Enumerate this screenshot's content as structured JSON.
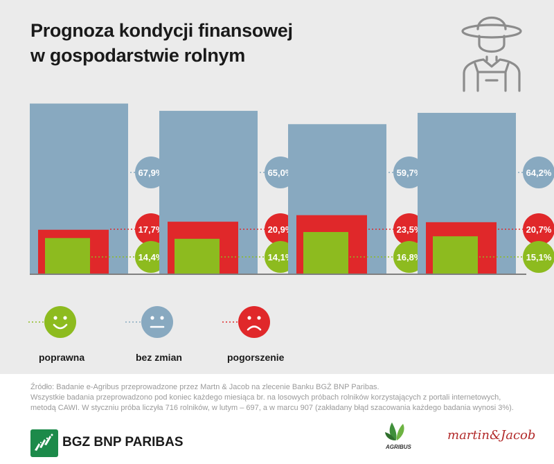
{
  "title_lines": [
    "Prognoza kondycji finansowej",
    "w gospodarstwie rolnym"
  ],
  "colors": {
    "bez_zmian": "#88a9c0",
    "pogorszenie": "#e0282a",
    "poprawna": "#8dbb1f",
    "background": "#ebebeb"
  },
  "chart_data": {
    "type": "bar",
    "categories": [
      "",
      "",
      "",
      ""
    ],
    "series": [
      {
        "name": "bez zmian",
        "values": [
          67.9,
          65.0,
          59.7,
          64.2
        ],
        "labels": [
          "67,9%",
          "65,0%",
          "59,7%",
          "64,2%"
        ]
      },
      {
        "name": "pogorszenie",
        "values": [
          17.7,
          20.9,
          23.5,
          20.7
        ],
        "labels": [
          "17,7%",
          "20,9%",
          "23,5%",
          "20,7%"
        ]
      },
      {
        "name": "poprawna",
        "values": [
          14.4,
          14.1,
          16.8,
          15.1
        ],
        "labels": [
          "14,4%",
          "14,1%",
          "16,8%",
          "15,1%"
        ]
      }
    ],
    "ylim": [
      0,
      70
    ]
  },
  "legend": [
    {
      "key": "poprawna",
      "label": "poprawna",
      "icon": "happy-face-icon"
    },
    {
      "key": "bez_zmian",
      "label": "bez zmian",
      "icon": "neutral-face-icon"
    },
    {
      "key": "pogorszenie",
      "label": "pogorszenie",
      "icon": "sad-face-icon"
    }
  ],
  "footer": {
    "lines": [
      "Źródło: Badanie e-Agribus przeprowadzone przez Martn & Jacob na zlecenie Banku BGŻ BNP Paribas.",
      "Wszystkie badania przeprowadzono pod koniec każdego miesiąca br. na losowych próbach rolników korzystających z portali internetowych,",
      "metodą CAWI. W styczniu próba liczyła 716 rolników, w lutym – 697, a w marcu 907 (zakładany błąd szacowania każdego badania wynosi 3%)."
    ]
  },
  "logos": {
    "bank": "BGZ BNP PARIBAS",
    "agribus": "AGRIBUS",
    "martin_jacob": "martin&Jacob"
  }
}
